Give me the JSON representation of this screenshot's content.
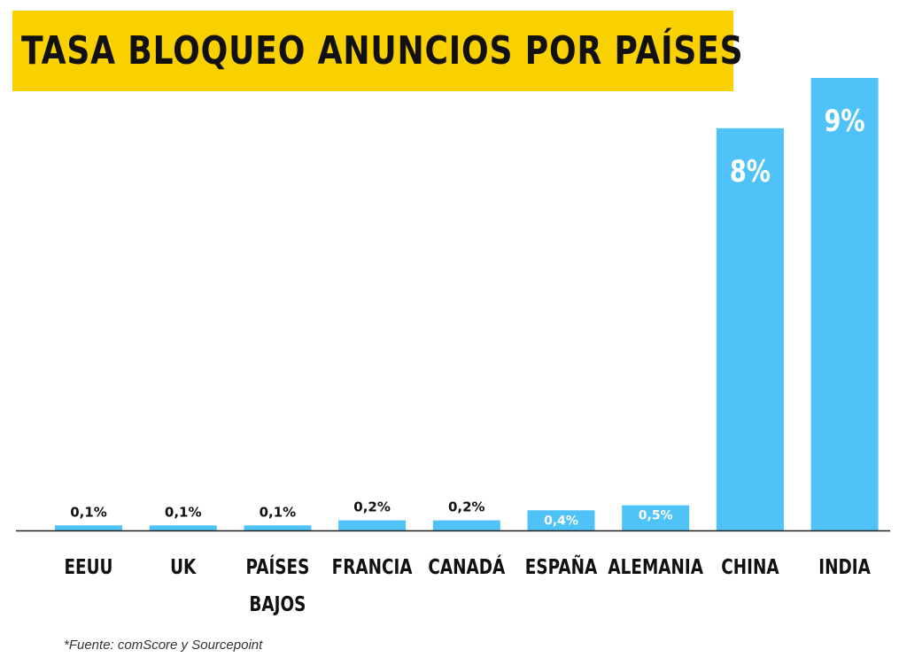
{
  "chart_data": {
    "type": "bar",
    "title": "TASA BLOQUEO ANUNCIOS POR PAÍSES",
    "categories": [
      [
        "EEUU"
      ],
      [
        "UK"
      ],
      [
        "PAÍSES",
        "BAJOS"
      ],
      [
        "FRANCIA"
      ],
      [
        "CANADÁ"
      ],
      [
        "ESPAÑA"
      ],
      [
        "ALEMANIA"
      ],
      [
        "CHINA"
      ],
      [
        "INDIA"
      ]
    ],
    "values": [
      0.1,
      0.1,
      0.1,
      0.2,
      0.2,
      0.4,
      0.5,
      8,
      9
    ],
    "value_labels": [
      "0,1%",
      "0,1%",
      "0,1%",
      "0,2%",
      "0,2%",
      "0,4%",
      "0,5%",
      "8%",
      "9%"
    ],
    "ylim": [
      0,
      9
    ],
    "grid": false,
    "bar_color": "#4fc3f7",
    "title_background": "#f9d100"
  },
  "footnote": "*Fuente: comScore y Sourcepoint"
}
